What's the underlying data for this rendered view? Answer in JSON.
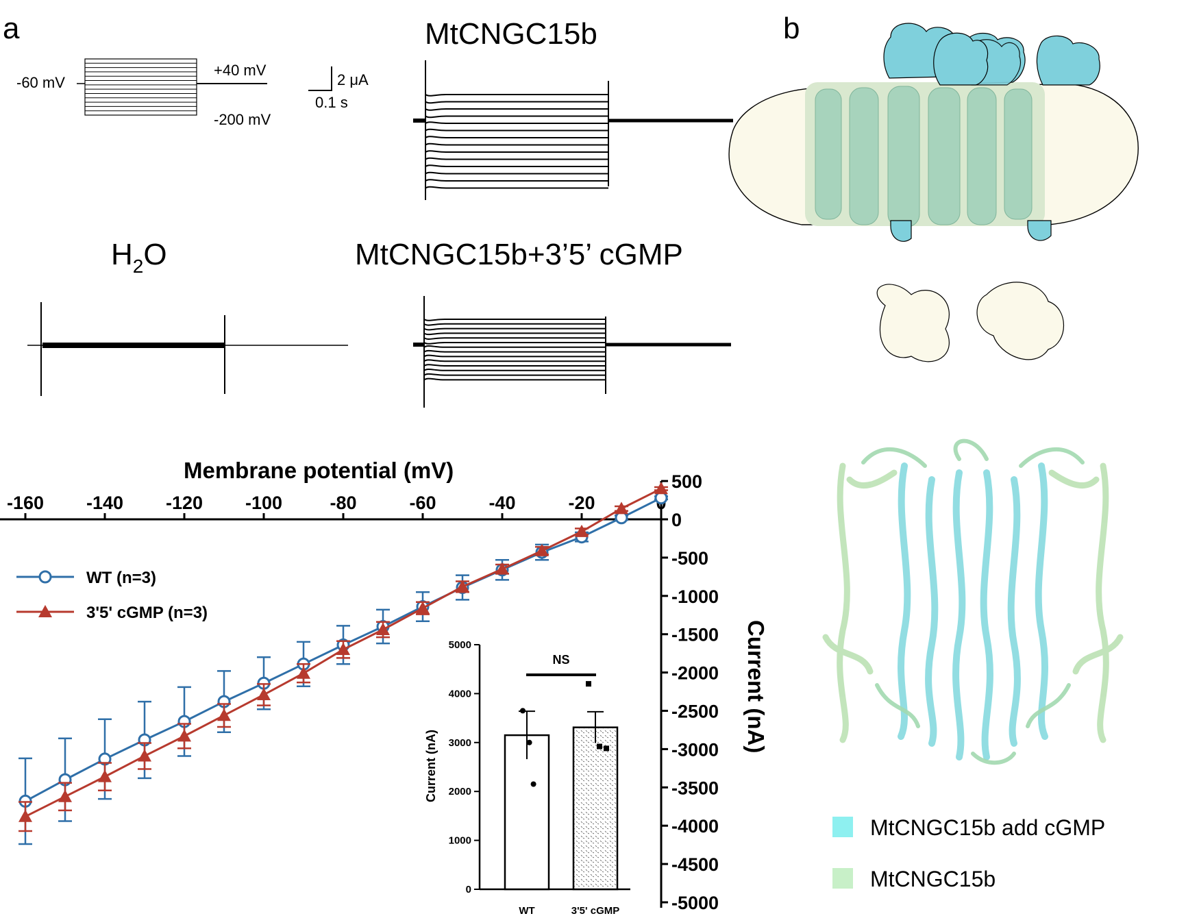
{
  "panel_a": {
    "label": "a",
    "protocol": {
      "holding": "-60 mV",
      "top": "+40 mV",
      "bottom": "-200 mV"
    },
    "scale_bar": {
      "current": "2 μA",
      "time": "0.1 s"
    },
    "trace_titles": {
      "mtcngc": "MtCNGC15b",
      "water": "H2O",
      "water_base": "H",
      "water_sub": "2",
      "water_tail": "O",
      "mtcngc_cgmp": "MtCNGC15b+3’5’ cGMP"
    }
  },
  "panel_b": {
    "label": "b",
    "legend": [
      {
        "label": "MtCNGC15b add cGMP",
        "color": "#8ef0f0"
      },
      {
        "label": "MtCNGC15b",
        "color": "#c8f0c8"
      }
    ]
  },
  "chart_data": [
    {
      "type": "line",
      "title": "",
      "xlabel": "Membrane potential (mV)",
      "ylabel": "Current (nA)",
      "xlim": [
        -160,
        0
      ],
      "ylim": [
        -5000,
        500
      ],
      "x_ticks": [
        "-160",
        "-140",
        "-120",
        "-100",
        "-80",
        "-60",
        "-40",
        "-20",
        "0"
      ],
      "y_ticks": [
        "500",
        "0",
        "-500",
        "-1000",
        "-1500",
        "-2000",
        "-2500",
        "-3000",
        "-3500",
        "-4000",
        "-4500",
        "-5000"
      ],
      "x": [
        -160,
        -150,
        -140,
        -130,
        -120,
        -110,
        -100,
        -90,
        -80,
        -70,
        -60,
        -50,
        -40,
        -30,
        -20,
        -10,
        0
      ],
      "series": [
        {
          "name": "WT (n=3)",
          "color": "#2f6fa8",
          "marker": "circle",
          "values": [
            -3680,
            -3400,
            -3130,
            -2880,
            -2640,
            -2380,
            -2140,
            -1890,
            -1640,
            -1400,
            -1140,
            -890,
            -660,
            -430,
            -230,
            20,
            280
          ],
          "errors": [
            560,
            540,
            520,
            500,
            450,
            400,
            340,
            290,
            250,
            220,
            190,
            160,
            130,
            100,
            60,
            30,
            20
          ]
        },
        {
          "name": "3'5'  cGMP (n=3)",
          "color": "#b73a2e",
          "marker": "triangle",
          "values": [
            -3880,
            -3620,
            -3360,
            -3090,
            -2830,
            -2560,
            -2290,
            -2010,
            -1700,
            -1440,
            -1160,
            -880,
            -650,
            -410,
            -160,
            140,
            400
          ],
          "errors": [
            190,
            180,
            180,
            170,
            160,
            150,
            140,
            120,
            110,
            100,
            80,
            70,
            60,
            50,
            40,
            30,
            20
          ]
        }
      ]
    },
    {
      "type": "bar",
      "title": "NS",
      "xlabel": "",
      "ylabel": "Current (nA)",
      "ylim": [
        0,
        5000
      ],
      "y_ticks": [
        "0",
        "1000",
        "2000",
        "3000",
        "4000",
        "5000"
      ],
      "categories": [
        "WT",
        "3'5' cGMP"
      ],
      "values": [
        3150,
        3310
      ],
      "errors": [
        490,
        320
      ],
      "points": [
        [
          3650,
          3000,
          2150
        ],
        [
          4200,
          2920,
          2880
        ]
      ]
    }
  ]
}
